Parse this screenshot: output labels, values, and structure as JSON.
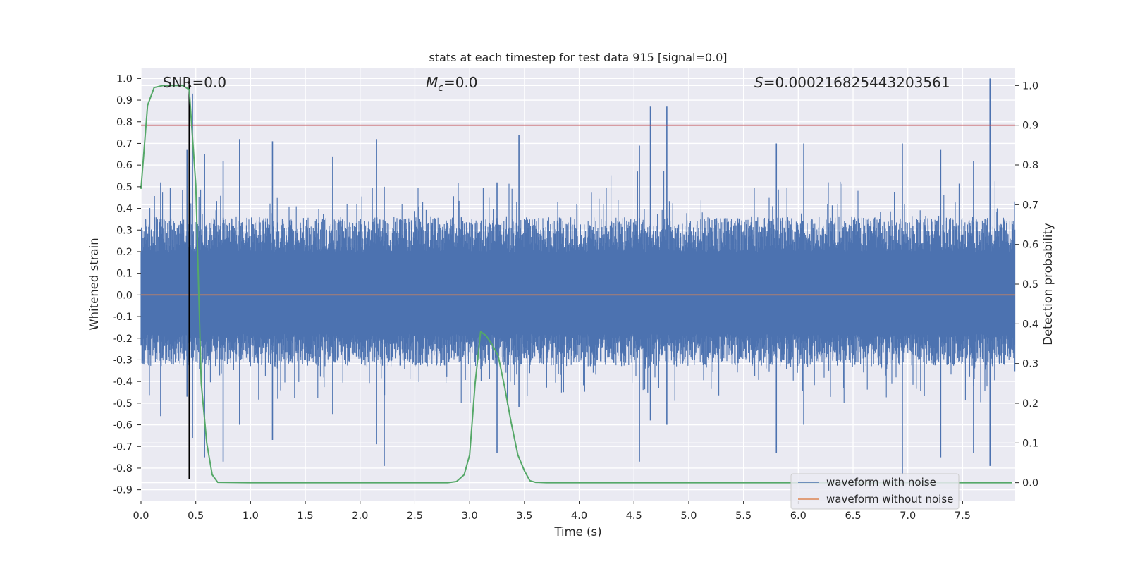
{
  "chart_data": {
    "type": "line",
    "title": "stats at each timestep for test data 915 [signal=0.0]",
    "xlabel": "Time (s)",
    "ylabel": "Whitened strain",
    "ylabel_right": "Detection probability",
    "xlim": [
      0.0,
      7.98
    ],
    "ylim": [
      -0.95,
      1.05
    ],
    "ylim_right": [
      -0.045,
      1.045
    ],
    "x_ticks": [
      "0.0",
      "0.5",
      "1.0",
      "1.5",
      "2.0",
      "2.5",
      "3.0",
      "3.5",
      "4.0",
      "4.5",
      "5.0",
      "5.5",
      "6.0",
      "6.5",
      "7.0",
      "7.5"
    ],
    "x_tick_values": [
      0.0,
      0.5,
      1.0,
      1.5,
      2.0,
      2.5,
      3.0,
      3.5,
      4.0,
      4.5,
      5.0,
      5.5,
      6.0,
      6.5,
      7.0,
      7.5
    ],
    "y_ticks": [
      "1.0",
      "0.9",
      "0.8",
      "0.7",
      "0.6",
      "0.5",
      "0.4",
      "0.3",
      "0.2",
      "0.1",
      "0.0",
      "-0.1",
      "-0.2",
      "-0.3",
      "-0.4",
      "-0.5",
      "-0.6",
      "-0.7",
      "-0.8",
      "-0.9"
    ],
    "y_tick_values": [
      1.0,
      0.9,
      0.8,
      0.7,
      0.6,
      0.5,
      0.4,
      0.3,
      0.2,
      0.1,
      0.0,
      -0.1,
      -0.2,
      -0.3,
      -0.4,
      -0.5,
      -0.6,
      -0.7,
      -0.8,
      -0.9
    ],
    "y2_ticks": [
      "1.0",
      "0.9",
      "0.8",
      "0.7",
      "0.6",
      "0.5",
      "0.4",
      "0.3",
      "0.2",
      "0.1",
      "0.0"
    ],
    "y2_tick_values": [
      1.0,
      0.9,
      0.8,
      0.7,
      0.6,
      0.5,
      0.4,
      0.3,
      0.2,
      0.1,
      0.0
    ],
    "annotations": {
      "snr": "SNR=0.0",
      "mc_symbol": "M",
      "mc_sub": "c",
      "mc_value": "=0.0",
      "s_symbol": "S",
      "s_value": "=0.000216825443203561"
    },
    "threshold_line": {
      "axis": "right",
      "y": 0.9
    },
    "vertical_marker": {
      "x": 0.44,
      "y_range": [
        -0.85,
        1.0
      ]
    },
    "series": [
      {
        "name": "waveform with noise",
        "color": "#4c72b0",
        "kind": "noise",
        "envelope_top": 0.36,
        "envelope_bottom": -0.33,
        "spikes": [
          {
            "x": 0.47,
            "top": 0.93,
            "bottom": -0.66
          },
          {
            "x": 0.18,
            "top": 0.52,
            "bottom": -0.56
          },
          {
            "x": 0.42,
            "top": 0.67,
            "bottom": -0.47
          },
          {
            "x": 0.58,
            "top": 0.65,
            "bottom": -0.75
          },
          {
            "x": 0.75,
            "top": 0.62,
            "bottom": -0.77
          },
          {
            "x": 0.9,
            "top": 0.72,
            "bottom": -0.6
          },
          {
            "x": 1.2,
            "top": 0.71,
            "bottom": -0.67
          },
          {
            "x": 1.75,
            "top": 0.64,
            "bottom": -0.55
          },
          {
            "x": 2.15,
            "top": 0.72,
            "bottom": -0.69
          },
          {
            "x": 2.22,
            "top": 0.5,
            "bottom": -0.79
          },
          {
            "x": 3.25,
            "top": 0.52,
            "bottom": -0.73
          },
          {
            "x": 3.45,
            "top": 0.74,
            "bottom": -0.52
          },
          {
            "x": 4.55,
            "top": 0.69,
            "bottom": -0.77
          },
          {
            "x": 4.65,
            "top": 0.87,
            "bottom": -0.58
          },
          {
            "x": 4.8,
            "top": 0.87,
            "bottom": -0.6
          },
          {
            "x": 5.8,
            "top": 0.7,
            "bottom": -0.73
          },
          {
            "x": 6.05,
            "top": 0.7,
            "bottom": -0.6
          },
          {
            "x": 6.95,
            "top": 0.7,
            "bottom": -0.83
          },
          {
            "x": 7.3,
            "top": 0.67,
            "bottom": -0.75
          },
          {
            "x": 7.75,
            "top": 1.0,
            "bottom": -0.79
          },
          {
            "x": 7.6,
            "top": 0.62,
            "bottom": -0.73
          }
        ]
      },
      {
        "name": "waveform without noise",
        "color": "#dd8452",
        "x": [
          0.0,
          7.98
        ],
        "y": [
          0.0,
          0.0
        ]
      },
      {
        "name": "detection probability",
        "axis": "right",
        "color": "#55a868",
        "x": [
          0.0,
          0.06,
          0.12,
          0.2,
          0.3,
          0.38,
          0.44,
          0.5,
          0.55,
          0.6,
          0.65,
          0.7,
          1.0,
          1.5,
          2.0,
          2.5,
          2.8,
          2.88,
          2.95,
          3.0,
          3.05,
          3.1,
          3.15,
          3.2,
          3.26,
          3.32,
          3.38,
          3.44,
          3.5,
          3.55,
          3.6,
          3.7,
          4.0,
          5.0,
          6.0,
          7.0,
          7.95
        ],
        "y": [
          0.74,
          0.95,
          0.995,
          1.0,
          1.0,
          1.0,
          0.99,
          0.75,
          0.25,
          0.1,
          0.02,
          0.001,
          0.0,
          0.0,
          0.0,
          0.0,
          0.0,
          0.003,
          0.02,
          0.07,
          0.25,
          0.38,
          0.37,
          0.35,
          0.32,
          0.24,
          0.15,
          0.07,
          0.03,
          0.005,
          0.001,
          0.0,
          0.0,
          0.0,
          0.0,
          0.0,
          0.0
        ]
      }
    ],
    "legend": {
      "position": "lower-right",
      "entries": [
        {
          "label": "waveform with noise",
          "color": "#4c72b0"
        },
        {
          "label": "waveform without noise",
          "color": "#dd8452"
        }
      ]
    },
    "colors": {
      "background": "#eaeaf2",
      "grid": "#ffffff",
      "threshold": "#c44e52",
      "marker": "#000000"
    }
  }
}
